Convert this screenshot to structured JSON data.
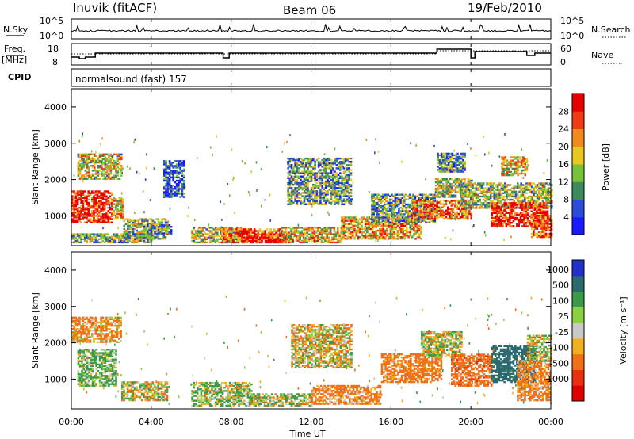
{
  "header": {
    "station": "Inuvik (fitACF)",
    "beam": "Beam 06",
    "date": "19/Feb/2010"
  },
  "noise_panel": {
    "left_label": "N.Sky",
    "right_label": "N.Search",
    "left_ticks": [
      "10^5",
      "10^0"
    ],
    "right_ticks": [
      "10^5",
      "10^0"
    ]
  },
  "freq_panel": {
    "left_label_1": "Freq.",
    "left_label_2": "[MHz]",
    "right_label": "Nave",
    "left_ticks": [
      "18",
      "8"
    ],
    "right_ticks": [
      "60",
      "0"
    ]
  },
  "cpid": {
    "label": "CPID",
    "value": "normalsound (fast) 157"
  },
  "axes": {
    "y_label": "Slant Range [km]",
    "y_ticks": [
      "1000",
      "2000",
      "3000",
      "4000"
    ],
    "x_ticks": [
      "00:00",
      "04:00",
      "08:00",
      "12:00",
      "16:00",
      "20:00",
      "00:00"
    ],
    "x_label": "Time UT"
  },
  "power_colorbar": {
    "title": "Power [dB]",
    "ticks": [
      "4",
      "8",
      "12",
      "16",
      "20",
      "24",
      "28"
    ],
    "colors": [
      "#1a1aff",
      "#2a4cd8",
      "#3a8a5e",
      "#77c23a",
      "#e8c820",
      "#f08a1c",
      "#ef3a14",
      "#e80000"
    ]
  },
  "velocity_colorbar": {
    "title": "Velocity [m s⁻¹]",
    "ticks": [
      "1000",
      "500",
      "100",
      "25",
      "-25",
      "-100",
      "-500",
      "-1000"
    ],
    "colors": [
      "#2030c8",
      "#2a6a70",
      "#3a9a4a",
      "#8ad040",
      "#c8c8c8",
      "#f0b020",
      "#f07018",
      "#e83010",
      "#e00000"
    ]
  },
  "chart_data": {
    "type": "heatmap",
    "title": "Inuvik (fitACF) Beam 06 19/Feb/2010",
    "xlabel": "Time UT",
    "ylabel": "Slant Range [km]",
    "xlim": [
      0,
      24
    ],
    "ylim": [
      180,
      4500
    ],
    "x_ticks_hours": [
      0,
      4,
      8,
      12,
      16,
      20,
      24
    ],
    "y_ticks_km": [
      1000,
      2000,
      3000,
      4000
    ],
    "panels": [
      {
        "name": "Power [dB]",
        "clim": [
          0,
          30
        ],
        "regions": [
          {
            "t": [
              0.0,
              2.0
            ],
            "r": [
              800,
              1700
            ],
            "v": 27
          },
          {
            "t": [
              2.0,
              2.6
            ],
            "r": [
              900,
              1500
            ],
            "v": 18
          },
          {
            "t": [
              0.3,
              2.5
            ],
            "r": [
              2000,
              2700
            ],
            "v": 16
          },
          {
            "t": [
              2.6,
              4.8
            ],
            "r": [
              350,
              900
            ],
            "v": 14
          },
          {
            "t": [
              3.6,
              5.0
            ],
            "r": [
              500,
              750
            ],
            "v": 10
          },
          {
            "t": [
              0.0,
              4.0
            ],
            "r": [
              250,
              500
            ],
            "v": 12
          },
          {
            "t": [
              4.6,
              5.6
            ],
            "r": [
              1500,
              2500
            ],
            "v": 6
          },
          {
            "t": [
              6.0,
              8.5
            ],
            "r": [
              250,
              700
            ],
            "v": 15
          },
          {
            "t": [
              7.5,
              10.5
            ],
            "r": [
              250,
              650
            ],
            "v": 24
          },
          {
            "t": [
              8.5,
              11.0
            ],
            "r": [
              250,
              520
            ],
            "v": 28
          },
          {
            "t": [
              10.5,
              13.5
            ],
            "r": [
              250,
              700
            ],
            "v": 18
          },
          {
            "t": [
              10.8,
              14.0
            ],
            "r": [
              1300,
              2600
            ],
            "v": 11
          },
          {
            "t": [
              13.5,
              17.5
            ],
            "r": [
              350,
              950
            ],
            "v": 19
          },
          {
            "t": [
              15.0,
              18.2
            ],
            "r": [
              800,
              1600
            ],
            "v": 11
          },
          {
            "t": [
              17.0,
              20.0
            ],
            "r": [
              900,
              1400
            ],
            "v": 22
          },
          {
            "t": [
              18.2,
              20.0
            ],
            "r": [
              1500,
              2000
            ],
            "v": 15
          },
          {
            "t": [
              18.3,
              19.7
            ],
            "r": [
              2200,
              2700
            ],
            "v": 10
          },
          {
            "t": [
              19.5,
              24.0
            ],
            "r": [
              1200,
              1900
            ],
            "v": 14
          },
          {
            "t": [
              21.0,
              23.8
            ],
            "r": [
              700,
              1350
            ],
            "v": 27
          },
          {
            "t": [
              21.5,
              22.8
            ],
            "r": [
              2100,
              2600
            ],
            "v": 17
          },
          {
            "t": [
              23.0,
              24.0
            ],
            "r": [
              400,
              1000
            ],
            "v": 24
          }
        ]
      },
      {
        "name": "Velocity [m s⁻¹]",
        "clim": [
          -1000,
          1000
        ],
        "regions": [
          {
            "t": [
              0.3,
              2.2
            ],
            "r": [
              800,
              1800
            ],
            "v": 150
          },
          {
            "t": [
              0.0,
              2.5
            ],
            "r": [
              2000,
              2700
            ],
            "v": -150
          },
          {
            "t": [
              2.5,
              4.8
            ],
            "r": [
              400,
              900
            ],
            "v": 0
          },
          {
            "t": [
              6.0,
              9.0
            ],
            "r": [
              250,
              900
            ],
            "v": 80
          },
          {
            "t": [
              9.0,
              12.0
            ],
            "r": [
              250,
              600
            ],
            "v": 60
          },
          {
            "t": [
              11.0,
              14.0
            ],
            "r": [
              1300,
              2500
            ],
            "v": -40
          },
          {
            "t": [
              12.0,
              15.5
            ],
            "r": [
              300,
              800
            ],
            "v": -200
          },
          {
            "t": [
              15.5,
              18.5
            ],
            "r": [
              900,
              1700
            ],
            "v": -220
          },
          {
            "t": [
              17.5,
              19.5
            ],
            "r": [
              1600,
              2300
            ],
            "v": 40
          },
          {
            "t": [
              19.0,
              21.0
            ],
            "r": [
              800,
              1700
            ],
            "v": -350
          },
          {
            "t": [
              21.0,
              23.2
            ],
            "r": [
              900,
              1900
            ],
            "v": 700
          },
          {
            "t": [
              22.3,
              24.0
            ],
            "r": [
              400,
              1500
            ],
            "v": -200
          },
          {
            "t": [
              22.8,
              24.0
            ],
            "r": [
              1500,
              2200
            ],
            "v": 40
          }
        ]
      }
    ]
  }
}
